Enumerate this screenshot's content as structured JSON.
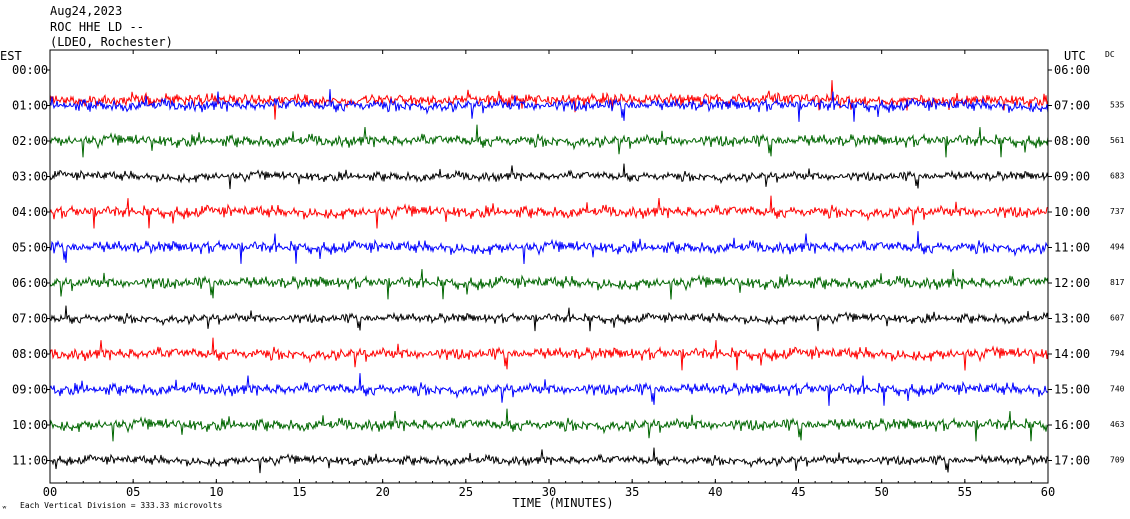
{
  "header": {
    "date": "Aug24,2023",
    "station": "ROC HHE LD --",
    "network": "(LDEO, Rochester)"
  },
  "chart_data": {
    "type": "line",
    "title": "",
    "left_axis_label": "EST",
    "right_axis_label": "UTC",
    "dc_label": "DC",
    "xlabel": "TIME (MINUTES)",
    "x_ticks": [
      "00",
      "05",
      "10",
      "15",
      "20",
      "25",
      "30",
      "35",
      "40",
      "45",
      "50",
      "55",
      "60"
    ],
    "xlim": [
      0,
      60
    ],
    "left_times": [
      "00:00",
      "01:00",
      "02:00",
      "03:00",
      "04:00",
      "05:00",
      "06:00",
      "07:00",
      "08:00",
      "09:00",
      "10:00",
      "11:00"
    ],
    "right_times": [
      "06:00",
      "07:00",
      "08:00",
      "09:00",
      "10:00",
      "11:00",
      "12:00",
      "13:00",
      "14:00",
      "15:00",
      "16:00",
      "17:00"
    ],
    "dc_values": [
      "",
      "535",
      "561",
      "683",
      "737",
      "494",
      "817",
      "607",
      "794",
      "740",
      "463",
      "709"
    ],
    "trace_colors": [
      "#ff0000",
      "#0000ff",
      "#006600",
      "#000000"
    ],
    "footer_note": "Each Vertical Division =  333.33 microvolts",
    "corner_mark": "ʷ"
  }
}
